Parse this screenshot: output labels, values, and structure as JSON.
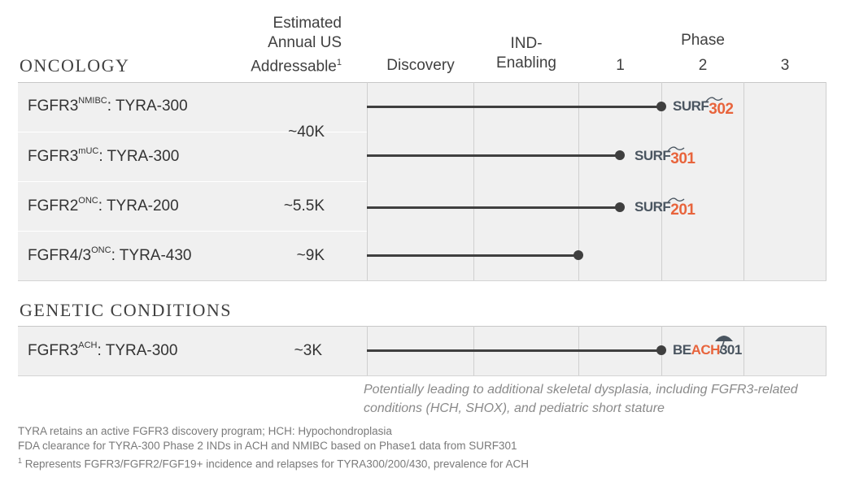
{
  "headers": {
    "market_line1": "Estimated",
    "market_line2": "Annual US",
    "market_line3": "Addressable",
    "market_sup": "1",
    "discovery": "Discovery",
    "ind_line1": "IND-",
    "ind_line2": "Enabling",
    "phase": "Phase",
    "phase1": "1",
    "phase2": "2",
    "phase3": "3"
  },
  "sections": {
    "oncology": "ONCOLOGY",
    "genetic": "GENETIC CONDITIONS"
  },
  "rows": [
    {
      "base": "FGFR3",
      "sup": "NMIBC",
      "rest": ": TYRA-300",
      "trial_a": "SURF",
      "trial_b": "302"
    },
    {
      "base": "FGFR3",
      "sup": "mUC",
      "rest": ": TYRA-300",
      "trial_a": "SURF",
      "trial_b": "301"
    },
    {
      "base": "FGFR2",
      "sup": "ONC",
      "rest": ": TYRA-200",
      "trial_a": "SURF",
      "trial_b": "201"
    },
    {
      "base": "FGFR4/3",
      "sup": "ONC",
      "rest": ":  TYRA-430"
    },
    {
      "base": "FGFR3",
      "sup": "ACH",
      "rest": ": TYRA-300",
      "trial_a": "BE",
      "trial_b": "ACH",
      "trial_c": "301"
    }
  ],
  "markets": {
    "tyra300_onc": "~40K",
    "tyra200": "~5.5K",
    "tyra430": "~9K",
    "ach": "~3K"
  },
  "progress_phase_units": {
    "nmibc": 2.0,
    "muc": 1.5,
    "fgfr2": 1.5,
    "fgfr43": 1.0,
    "ach": 2.0
  },
  "note": "Potentially leading to additional skeletal dysplasia, including FGFR3-related conditions (HCH, SHOX), and pediatric short stature",
  "footnotes": {
    "line1": "TYRA retains an active FGFR3 discovery program; HCH: Hypochondroplasia",
    "line2": "FDA clearance for TYRA-300 Phase 2 INDs in ACH and NMIBC based on Phase1 data from SURF301",
    "line3_sup": "1",
    "line3": " Represents FGFR3/FGFR2/FGF19+ incidence and relapses for TYRA300/200/430, prevalence for ACH"
  },
  "colors": {
    "bar": "#3f3f3f",
    "trial_dark": "#4a5560",
    "trial_orange": "#e8643c",
    "band": "#f0f0f0"
  }
}
